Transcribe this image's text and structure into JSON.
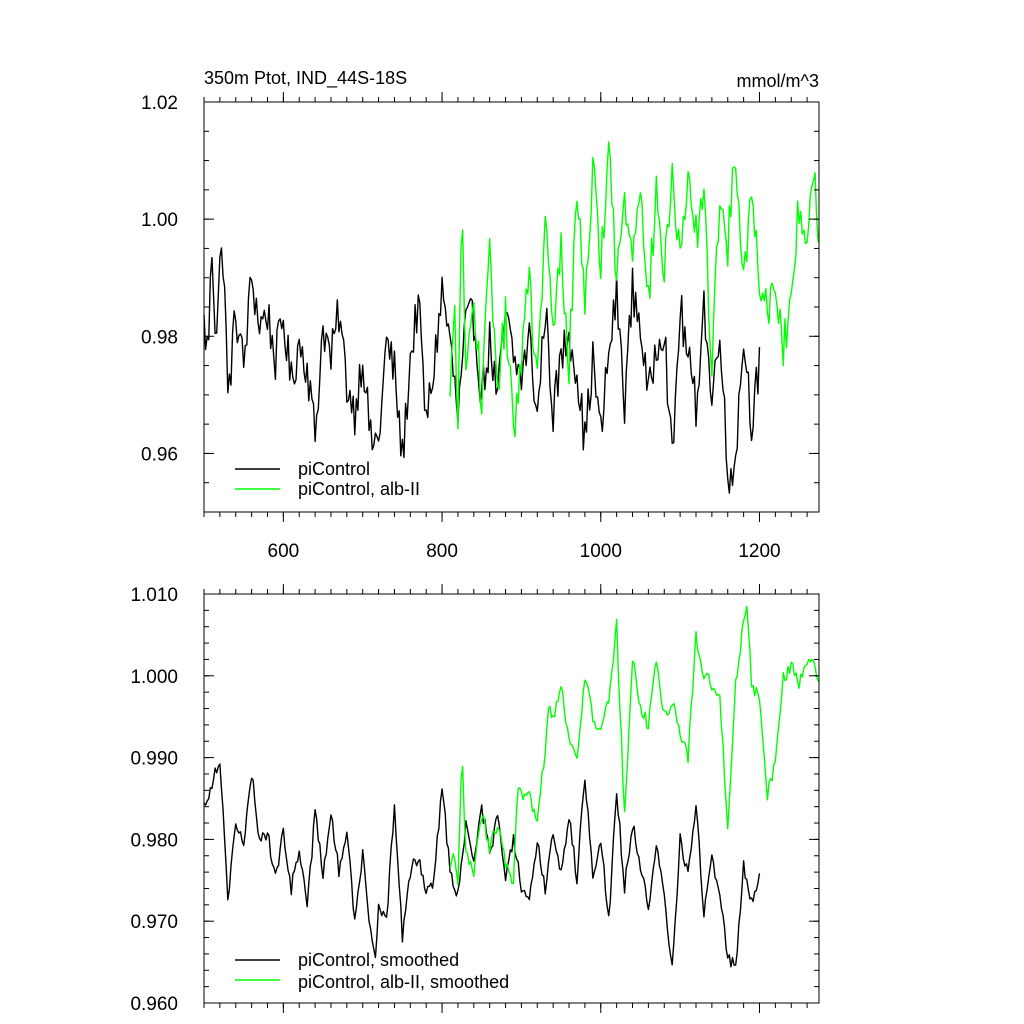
{
  "figure": {
    "title_left": "350m Ptot, IND_44S-18S",
    "title_right": "mmol/m^3"
  },
  "chart_data": [
    {
      "type": "line",
      "panel": "top",
      "xlim": [
        500,
        1275
      ],
      "ylim": [
        0.95,
        1.02
      ],
      "xticks": [
        600,
        800,
        1000,
        1200
      ],
      "xtick_labels": [
        "600",
        "800",
        "1000",
        "1200"
      ],
      "yticks": [
        0.96,
        0.98,
        1.0,
        1.02
      ],
      "ytick_labels": [
        "0.96",
        "0.98",
        "1.00",
        "1.02"
      ],
      "legend_position": "bottom-left",
      "series": [
        {
          "name": "piControl",
          "color": "#000000",
          "x_start": 500,
          "x_end": 1200,
          "anchors": [
            [
              500,
              0.982
            ],
            [
              505,
              0.977
            ],
            [
              510,
              0.995
            ],
            [
              515,
              0.98
            ],
            [
              520,
              0.992
            ],
            [
              525,
              0.994
            ],
            [
              530,
              0.969
            ],
            [
              540,
              0.984
            ],
            [
              550,
              0.975
            ],
            [
              560,
              0.99
            ],
            [
              570,
              0.982
            ],
            [
              580,
              0.984
            ],
            [
              590,
              0.976
            ],
            [
              600,
              0.983
            ],
            [
              610,
              0.972
            ],
            [
              620,
              0.979
            ],
            [
              630,
              0.975
            ],
            [
              640,
              0.963
            ],
            [
              650,
              0.982
            ],
            [
              660,
              0.976
            ],
            [
              670,
              0.984
            ],
            [
              680,
              0.972
            ],
            [
              690,
              0.967
            ],
            [
              700,
              0.977
            ],
            [
              710,
              0.962
            ],
            [
              720,
              0.962
            ],
            [
              730,
              0.979
            ],
            [
              740,
              0.974
            ],
            [
              750,
              0.959
            ],
            [
              760,
              0.976
            ],
            [
              770,
              0.986
            ],
            [
              780,
              0.965
            ],
            [
              790,
              0.975
            ],
            [
              800,
              0.988
            ],
            [
              810,
              0.979
            ],
            [
              820,
              0.966
            ],
            [
              830,
              0.982
            ],
            [
              840,
              0.983
            ],
            [
              850,
              0.97
            ],
            [
              860,
              0.979
            ],
            [
              870,
              0.969
            ],
            [
              880,
              0.984
            ],
            [
              890,
              0.976
            ],
            [
              900,
              0.973
            ],
            [
              910,
              0.98
            ],
            [
              920,
              0.966
            ],
            [
              930,
              0.985
            ],
            [
              940,
              0.967
            ],
            [
              950,
              0.976
            ],
            [
              960,
              0.981
            ],
            [
              970,
              0.974
            ],
            [
              980,
              0.962
            ],
            [
              990,
              0.976
            ],
            [
              1000,
              0.963
            ],
            [
              1010,
              0.977
            ],
            [
              1020,
              0.987
            ],
            [
              1030,
              0.969
            ],
            [
              1040,
              0.988
            ],
            [
              1050,
              0.982
            ],
            [
              1060,
              0.969
            ],
            [
              1070,
              0.979
            ],
            [
              1080,
              0.982
            ],
            [
              1090,
              0.958
            ],
            [
              1100,
              0.985
            ],
            [
              1110,
              0.976
            ],
            [
              1120,
              0.968
            ],
            [
              1130,
              0.986
            ],
            [
              1140,
              0.968
            ],
            [
              1150,
              0.983
            ],
            [
              1160,
              0.955
            ],
            [
              1170,
              0.96
            ],
            [
              1180,
              0.98
            ],
            [
              1190,
              0.966
            ],
            [
              1200,
              0.975
            ]
          ]
        },
        {
          "name": "piControl, alb-II",
          "color": "#00ff00",
          "x_start": 810,
          "x_end": 1275,
          "anchors": [
            [
              810,
              0.968
            ],
            [
              815,
              0.985
            ],
            [
              820,
              0.968
            ],
            [
              825,
              1.0
            ],
            [
              830,
              0.975
            ],
            [
              840,
              0.985
            ],
            [
              850,
              0.97
            ],
            [
              860,
              0.993
            ],
            [
              870,
              0.972
            ],
            [
              880,
              0.983
            ],
            [
              890,
              0.964
            ],
            [
              900,
              0.977
            ],
            [
              910,
              0.99
            ],
            [
              920,
              0.971
            ],
            [
              930,
              1.0
            ],
            [
              940,
              0.98
            ],
            [
              950,
              0.995
            ],
            [
              960,
              0.975
            ],
            [
              970,
              1.005
            ],
            [
              980,
              0.987
            ],
            [
              990,
              1.008
            ],
            [
              1000,
              0.993
            ],
            [
              1010,
              1.012
            ],
            [
              1020,
              0.99
            ],
            [
              1030,
              1.003
            ],
            [
              1040,
              0.995
            ],
            [
              1050,
              1.008
            ],
            [
              1060,
              0.985
            ],
            [
              1070,
              1.005
            ],
            [
              1080,
              0.99
            ],
            [
              1090,
              1.007
            ],
            [
              1100,
              0.993
            ],
            [
              1110,
              1.005
            ],
            [
              1120,
              0.998
            ],
            [
              1130,
              1.003
            ],
            [
              1140,
              0.975
            ],
            [
              1150,
              1.005
            ],
            [
              1160,
              0.995
            ],
            [
              1170,
              1.012
            ],
            [
              1180,
              0.99
            ],
            [
              1190,
              1.005
            ],
            [
              1200,
              0.99
            ],
            [
              1210,
              0.985
            ],
            [
              1220,
              0.99
            ],
            [
              1230,
              0.978
            ],
            [
              1240,
              0.985
            ],
            [
              1250,
              1.003
            ],
            [
              1260,
              0.998
            ],
            [
              1270,
              1.005
            ],
            [
              1275,
              0.997
            ]
          ]
        }
      ]
    },
    {
      "type": "line",
      "panel": "bottom",
      "xlim": [
        500,
        1275
      ],
      "ylim": [
        0.96,
        1.01
      ],
      "xticks": [
        600,
        800,
        1000,
        1200
      ],
      "yticks": [
        0.96,
        0.97,
        0.98,
        0.99,
        1.0,
        1.01
      ],
      "ytick_labels": [
        "0.960",
        "0.970",
        "0.980",
        "0.990",
        "1.000",
        "1.010"
      ],
      "legend_position": "bottom-left",
      "series": [
        {
          "name": "piControl, smoothed",
          "color": "#000000",
          "x_start": 500,
          "x_end": 1200,
          "anchors": [
            [
              500,
              0.984
            ],
            [
              510,
              0.987
            ],
            [
              520,
              0.99
            ],
            [
              530,
              0.973
            ],
            [
              540,
              0.982
            ],
            [
              550,
              0.979
            ],
            [
              560,
              0.988
            ],
            [
              570,
              0.98
            ],
            [
              580,
              0.981
            ],
            [
              590,
              0.975
            ],
            [
              600,
              0.981
            ],
            [
              610,
              0.974
            ],
            [
              620,
              0.979
            ],
            [
              630,
              0.972
            ],
            [
              640,
              0.983
            ],
            [
              650,
              0.976
            ],
            [
              660,
              0.983
            ],
            [
              670,
              0.976
            ],
            [
              680,
              0.981
            ],
            [
              690,
              0.97
            ],
            [
              700,
              0.978
            ],
            [
              710,
              0.969
            ],
            [
              715,
              0.965
            ],
            [
              720,
              0.972
            ],
            [
              730,
              0.97
            ],
            [
              740,
              0.984
            ],
            [
              750,
              0.968
            ],
            [
              760,
              0.976
            ],
            [
              770,
              0.978
            ],
            [
              780,
              0.974
            ],
            [
              790,
              0.975
            ],
            [
              800,
              0.987
            ],
            [
              810,
              0.976
            ],
            [
              820,
              0.973
            ],
            [
              830,
              0.982
            ],
            [
              840,
              0.977
            ],
            [
              850,
              0.984
            ],
            [
              860,
              0.978
            ],
            [
              870,
              0.983
            ],
            [
              880,
              0.975
            ],
            [
              890,
              0.98
            ],
            [
              900,
              0.974
            ],
            [
              910,
              0.972
            ],
            [
              920,
              0.98
            ],
            [
              930,
              0.974
            ],
            [
              940,
              0.981
            ],
            [
              950,
              0.976
            ],
            [
              960,
              0.983
            ],
            [
              970,
              0.975
            ],
            [
              980,
              0.988
            ],
            [
              990,
              0.976
            ],
            [
              1000,
              0.98
            ],
            [
              1010,
              0.97
            ],
            [
              1020,
              0.986
            ],
            [
              1030,
              0.974
            ],
            [
              1040,
              0.982
            ],
            [
              1050,
              0.977
            ],
            [
              1060,
              0.971
            ],
            [
              1070,
              0.979
            ],
            [
              1080,
              0.973
            ],
            [
              1090,
              0.964
            ],
            [
              1100,
              0.98
            ],
            [
              1110,
              0.976
            ],
            [
              1120,
              0.984
            ],
            [
              1130,
              0.971
            ],
            [
              1140,
              0.978
            ],
            [
              1150,
              0.973
            ],
            [
              1160,
              0.966
            ],
            [
              1170,
              0.964
            ],
            [
              1180,
              0.977
            ],
            [
              1190,
              0.972
            ],
            [
              1200,
              0.976
            ]
          ]
        },
        {
          "name": "piControl, alb-II, smoothed",
          "color": "#00ff00",
          "x_start": 810,
          "x_end": 1275,
          "anchors": [
            [
              810,
              0.976
            ],
            [
              815,
              0.978
            ],
            [
              820,
              0.974
            ],
            [
              825,
              0.991
            ],
            [
              830,
              0.978
            ],
            [
              840,
              0.976
            ],
            [
              850,
              0.983
            ],
            [
              860,
              0.979
            ],
            [
              870,
              0.982
            ],
            [
              880,
              0.977
            ],
            [
              890,
              0.974
            ],
            [
              895,
              0.986
            ],
            [
              900,
              0.985
            ],
            [
              910,
              0.985
            ],
            [
              920,
              0.983
            ],
            [
              930,
              0.991
            ],
            [
              935,
              0.997
            ],
            [
              940,
              0.995
            ],
            [
              950,
              0.999
            ],
            [
              960,
              0.992
            ],
            [
              970,
              0.99
            ],
            [
              980,
              1.0
            ],
            [
              990,
              0.995
            ],
            [
              1000,
              0.993
            ],
            [
              1010,
              0.997
            ],
            [
              1020,
              1.006
            ],
            [
              1030,
              0.983
            ],
            [
              1040,
              1.002
            ],
            [
              1050,
              0.996
            ],
            [
              1060,
              0.994
            ],
            [
              1070,
              1.002
            ],
            [
              1080,
              0.995
            ],
            [
              1090,
              0.997
            ],
            [
              1100,
              0.993
            ],
            [
              1110,
              0.99
            ],
            [
              1120,
              1.005
            ],
            [
              1130,
              1.0
            ],
            [
              1140,
              0.999
            ],
            [
              1150,
              0.997
            ],
            [
              1160,
              0.982
            ],
            [
              1170,
              0.999
            ],
            [
              1180,
              1.007
            ],
            [
              1185,
              1.008
            ],
            [
              1190,
              0.999
            ],
            [
              1200,
              0.997
            ],
            [
              1210,
              0.985
            ],
            [
              1220,
              0.99
            ],
            [
              1230,
              1.0
            ],
            [
              1240,
              1.001
            ],
            [
              1250,
              0.999
            ],
            [
              1260,
              1.002
            ],
            [
              1270,
              1.001
            ],
            [
              1275,
              1.0
            ]
          ]
        }
      ]
    }
  ]
}
